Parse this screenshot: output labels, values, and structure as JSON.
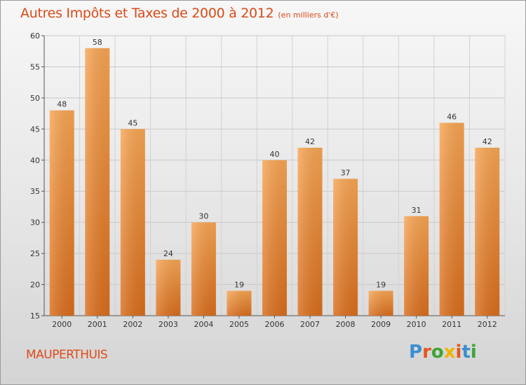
{
  "chart_data": {
    "type": "bar",
    "title": "Autres Impôts et Taxes de 2000 à 2012",
    "subtitle": "(en milliers d'€)",
    "categories": [
      "2000",
      "2001",
      "2002",
      "2003",
      "2004",
      "2005",
      "2006",
      "2007",
      "2008",
      "2009",
      "2010",
      "2011",
      "2012"
    ],
    "values": [
      48,
      58,
      45,
      24,
      30,
      19,
      40,
      42,
      37,
      19,
      31,
      46,
      42
    ],
    "data_labels": [
      "48",
      "58",
      "45",
      "24",
      "30",
      "19",
      "40",
      "42",
      "37",
      "19",
      "31",
      "46",
      "42"
    ],
    "xlabel": "",
    "ylabel": "",
    "ylim": [
      15,
      60
    ],
    "yticks": [
      15,
      20,
      25,
      30,
      35,
      40,
      45,
      50,
      55,
      60
    ],
    "grid": true,
    "bar_color": "#f28b30"
  },
  "footer": {
    "place_name": "MAUPERTHUIS",
    "brand": "Proxiti",
    "brand_letter_colors": [
      "#3a8fd1",
      "#e8541e",
      "#3fa535",
      "#f0b400",
      "#e8541e",
      "#3a8fd1",
      "#3fa535"
    ]
  }
}
